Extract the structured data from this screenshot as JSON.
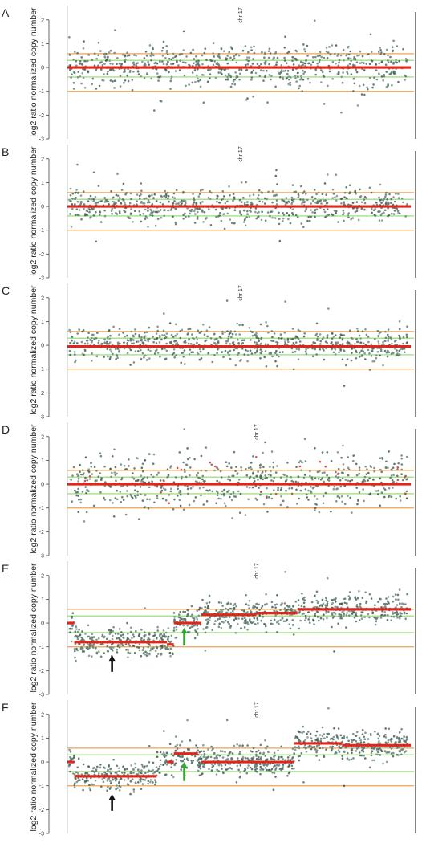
{
  "chart_data": [
    {
      "panel": "A",
      "type": "scatter",
      "title": "chr 17",
      "ylabel": "log2 ratio normalized copy number",
      "ylim": [
        -3,
        2.6
      ],
      "yticks": [
        -3,
        -2,
        -1,
        0,
        1,
        2
      ],
      "ref_lines": [
        {
          "y": 0.58,
          "color": "#f0a050"
        },
        {
          "y": 0.3,
          "color": "#8fd86a"
        },
        {
          "y": -0.4,
          "color": "#8fd86a"
        },
        {
          "y": -1.0,
          "color": "#f0a050"
        }
      ],
      "segments": [
        {
          "x": [
            0.0,
            1.0
          ],
          "y": 0.0
        }
      ],
      "scatter": {
        "mean": 0.05,
        "sd": 0.45,
        "n": 700
      },
      "arrows": []
    },
    {
      "panel": "B",
      "type": "scatter",
      "title": "chr 17",
      "ylabel": "log2 ratio normalized copy number",
      "ylim": [
        -3,
        2.6
      ],
      "yticks": [
        -3,
        -2,
        -1,
        0,
        1,
        2
      ],
      "ref_lines": [
        {
          "y": 0.58,
          "color": "#f0a050"
        },
        {
          "y": 0.3,
          "color": "#8fd86a"
        },
        {
          "y": -0.4,
          "color": "#8fd86a"
        },
        {
          "y": -1.0,
          "color": "#f0a050"
        }
      ],
      "segments": [
        {
          "x": [
            0.0,
            1.0
          ],
          "y": 0.0
        }
      ],
      "scatter": {
        "mean": 0.05,
        "sd": 0.35,
        "n": 700
      },
      "arrows": []
    },
    {
      "panel": "C",
      "type": "scatter",
      "title": "chr 17",
      "ylabel": "log2 ratio normalized copy number",
      "ylim": [
        -3,
        2.6
      ],
      "yticks": [
        -3,
        -2,
        -1,
        0,
        1,
        2
      ],
      "ref_lines": [
        {
          "y": 0.58,
          "color": "#f0a050"
        },
        {
          "y": 0.3,
          "color": "#8fd86a"
        },
        {
          "y": -0.4,
          "color": "#8fd86a"
        },
        {
          "y": -1.0,
          "color": "#f0a050"
        }
      ],
      "segments": [
        {
          "x": [
            0.0,
            1.0
          ],
          "y": -0.05
        }
      ],
      "scatter": {
        "mean": 0.05,
        "sd": 0.35,
        "n": 700
      },
      "arrows": []
    },
    {
      "panel": "D",
      "type": "scatter",
      "title": "chr 17",
      "ylabel": "log2 ratio normalized copy number",
      "ylim": [
        -3,
        2.6
      ],
      "yticks": [
        -3,
        -2,
        -1,
        0,
        1,
        2
      ],
      "ref_lines": [
        {
          "y": 0.58,
          "color": "#f0a050"
        },
        {
          "y": 0.3,
          "color": "#8fd86a"
        },
        {
          "y": -0.4,
          "color": "#8fd86a"
        },
        {
          "y": -1.0,
          "color": "#f0a050"
        }
      ],
      "segments": [
        {
          "x": [
            0.0,
            1.0
          ],
          "y": 0.0
        }
      ],
      "scatter": {
        "mean": 0.1,
        "sd": 0.55,
        "n": 650
      },
      "arrows": []
    },
    {
      "panel": "E",
      "type": "scatter",
      "title": "chr 17",
      "ylabel": "log2 ratio normalized copy number",
      "ylim": [
        -3,
        2.6
      ],
      "yticks": [
        -3,
        -2,
        -1,
        0,
        1,
        2
      ],
      "ref_lines": [
        {
          "y": 0.58,
          "color": "#f0a050"
        },
        {
          "y": 0.3,
          "color": "#8fd86a"
        },
        {
          "y": -0.4,
          "color": "#8fd86a"
        },
        {
          "y": -1.0,
          "color": "#f0a050"
        }
      ],
      "segments": [
        {
          "x": [
            0.0,
            0.02
          ],
          "y": 0.0
        },
        {
          "x": [
            0.02,
            0.29
          ],
          "y": -0.8
        },
        {
          "x": [
            0.29,
            0.31
          ],
          "y": -0.9
        },
        {
          "x": [
            0.31,
            0.39
          ],
          "y": 0.0
        },
        {
          "x": [
            0.39,
            0.55
          ],
          "y": 0.35
        },
        {
          "x": [
            0.55,
            0.67
          ],
          "y": 0.42
        },
        {
          "x": [
            0.67,
            1.0
          ],
          "y": 0.58
        }
      ],
      "scatter": {
        "mean": 0.0,
        "sd": 0.3,
        "n": 900
      },
      "arrows": [
        {
          "x": 0.13,
          "y_tip": -1.35,
          "y_tail": -2.05,
          "color": "#111111"
        },
        {
          "x": 0.34,
          "y_tip": -0.2,
          "y_tail": -0.95,
          "color": "#2eaa2e"
        }
      ]
    },
    {
      "panel": "F",
      "type": "scatter",
      "title": "chr 17",
      "ylabel": "log2 ratio normalized copy number",
      "ylim": [
        -3,
        2.6
      ],
      "yticks": [
        -3,
        -2,
        -1,
        0,
        1,
        2
      ],
      "ref_lines": [
        {
          "y": 0.58,
          "color": "#f0a050"
        },
        {
          "y": 0.3,
          "color": "#8fd86a"
        },
        {
          "y": -0.4,
          "color": "#8fd86a"
        },
        {
          "y": -1.0,
          "color": "#f0a050"
        }
      ],
      "segments": [
        {
          "x": [
            0.0,
            0.02
          ],
          "y": 0.0
        },
        {
          "x": [
            0.02,
            0.26
          ],
          "y": -0.6
        },
        {
          "x": [
            0.29,
            0.31
          ],
          "y": 0.0
        },
        {
          "x": [
            0.31,
            0.38
          ],
          "y": 0.35
        },
        {
          "x": [
            0.39,
            0.66
          ],
          "y": 0.0
        },
        {
          "x": [
            0.66,
            0.8
          ],
          "y": 0.78
        },
        {
          "x": [
            0.8,
            1.0
          ],
          "y": 0.7
        }
      ],
      "scatter": {
        "mean": 0.0,
        "sd": 0.3,
        "n": 900
      },
      "arrows": [
        {
          "x": 0.13,
          "y_tip": -1.35,
          "y_tail": -2.05,
          "color": "#111111"
        },
        {
          "x": 0.34,
          "y_tip": 0.0,
          "y_tail": -0.8,
          "color": "#2eaa2e"
        }
      ]
    }
  ]
}
